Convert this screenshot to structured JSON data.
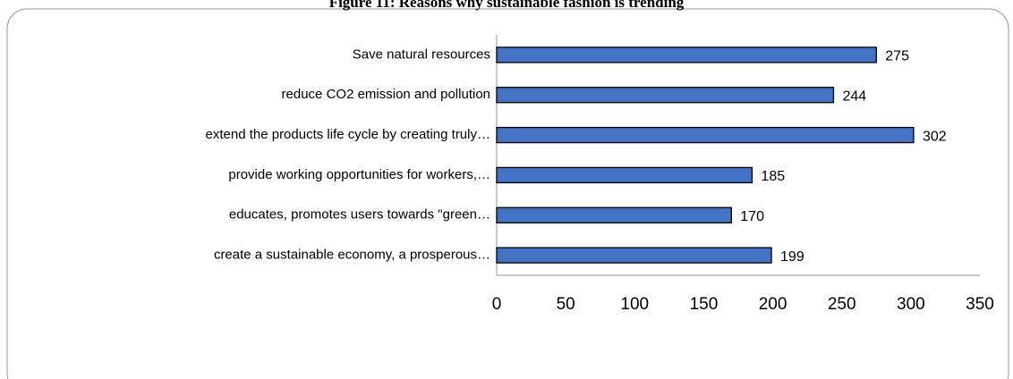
{
  "chart_data": {
    "type": "bar",
    "orientation": "horizontal",
    "title": "Figure 11: Reasons why sustainable fashion is trending",
    "categories": [
      "Save natural resources",
      "reduce CO2 emission and pollution",
      "extend the products life cycle by creating truly…",
      "provide working opportunities for workers,…",
      "educates, promotes users towards \"green…",
      "create a sustainable economy, a prosperous…"
    ],
    "values": [
      275,
      244,
      302,
      185,
      170,
      199
    ],
    "color": "#4472c4",
    "xlim": [
      0,
      350
    ],
    "xticks": [
      0,
      50,
      100,
      150,
      200,
      250,
      300,
      350
    ],
    "grid": false
  }
}
